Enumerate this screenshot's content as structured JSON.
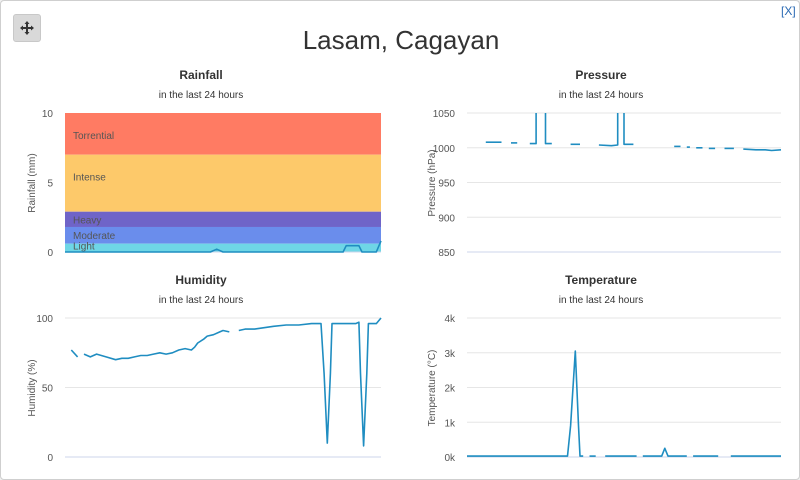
{
  "header": {
    "location": "Lasam, Cagayan",
    "close_label": "[X]",
    "move_icon": "move-icon"
  },
  "colors": {
    "line": "#1f8dc1",
    "grid": "#e6e6e6",
    "torrential": "#ff7b63",
    "intense": "#fdc96a",
    "heavy": "#6f64c8",
    "moderate": "#6a8dec",
    "light": "#6ed6e6"
  },
  "chart_data": [
    {
      "id": "rainfall",
      "type": "line",
      "title": "Rainfall",
      "subtitle": "in the last 24 hours",
      "ylabel": "Rainfall (mm)",
      "ylim": [
        0,
        10
      ],
      "yticks": [
        0,
        5,
        10
      ],
      "yticklabels": [
        "0",
        "5",
        "10"
      ],
      "bands": [
        {
          "label": "Torrential",
          "from": 7,
          "to": 10,
          "color_key": "torrential"
        },
        {
          "label": "Intense",
          "from": 2.9,
          "to": 7,
          "color_key": "intense"
        },
        {
          "label": "Heavy",
          "from": 1.8,
          "to": 2.9,
          "color_key": "heavy"
        },
        {
          "label": "Moderate",
          "from": 0.6,
          "to": 1.8,
          "color_key": "moderate"
        },
        {
          "label": "Light",
          "from": 0,
          "to": 0.6,
          "color_key": "light"
        }
      ],
      "series": [
        {
          "name": "Rainfall",
          "segments": [
            [
              [
                0,
                0
              ],
              [
                0.46,
                0
              ],
              [
                0.48,
                0.2
              ],
              [
                0.5,
                0
              ],
              [
                0.88,
                0
              ],
              [
                0.89,
                0.45
              ],
              [
                0.93,
                0.45
              ],
              [
                0.94,
                0
              ],
              [
                0.985,
                0
              ],
              [
                1,
                0.8
              ]
            ]
          ]
        }
      ]
    },
    {
      "id": "pressure",
      "type": "line",
      "title": "Pressure",
      "subtitle": "in the last 24 hours",
      "ylabel": "Pressure (hPa)",
      "ylim": [
        850,
        1050
      ],
      "yticks": [
        850,
        900,
        950,
        1000,
        1050
      ],
      "yticklabels": [
        "850",
        "900",
        "950",
        "1000",
        "1050"
      ],
      "series": [
        {
          "name": "Pressure",
          "segments": [
            [
              [
                0.06,
                1008
              ],
              [
                0.11,
                1008
              ]
            ],
            [
              [
                0.14,
                1007
              ],
              [
                0.16,
                1007
              ]
            ],
            [
              [
                0.2,
                1006
              ],
              [
                0.22,
                1006
              ],
              [
                0.22,
                1050
              ]
            ],
            [
              [
                0.25,
                1050
              ],
              [
                0.25,
                1006
              ],
              [
                0.27,
                1006
              ]
            ],
            [
              [
                0.33,
                1005
              ],
              [
                0.36,
                1005
              ]
            ],
            [
              [
                0.42,
                1004
              ],
              [
                0.46,
                1003
              ],
              [
                0.48,
                1004
              ],
              [
                0.48,
                1050
              ]
            ],
            [
              [
                0.5,
                1050
              ],
              [
                0.5,
                1005
              ],
              [
                0.53,
                1005
              ]
            ],
            [
              [
                0.66,
                1002
              ],
              [
                0.68,
                1002
              ]
            ],
            [
              [
                0.7,
                1001
              ],
              [
                0.71,
                1001
              ]
            ],
            [
              [
                0.73,
                1000
              ],
              [
                0.75,
                1000
              ]
            ],
            [
              [
                0.77,
                999
              ],
              [
                0.79,
                999
              ]
            ],
            [
              [
                0.82,
                999
              ],
              [
                0.85,
                999
              ]
            ],
            [
              [
                0.88,
                998
              ],
              [
                0.92,
                997
              ],
              [
                0.95,
                997
              ],
              [
                0.97,
                996
              ],
              [
                1,
                997
              ]
            ]
          ]
        }
      ]
    },
    {
      "id": "humidity",
      "type": "line",
      "title": "Humidity",
      "subtitle": "in the last 24 hours",
      "ylabel": "Humidity (%)",
      "ylim": [
        0,
        100
      ],
      "yticks": [
        0,
        50,
        100
      ],
      "yticklabels": [
        "0",
        "50",
        "100"
      ],
      "series": [
        {
          "name": "Humidity",
          "segments": [
            [
              [
                0.02,
                77
              ],
              [
                0.04,
                72
              ]
            ],
            [
              [
                0.06,
                74
              ],
              [
                0.08,
                72
              ],
              [
                0.1,
                74
              ],
              [
                0.13,
                72
              ],
              [
                0.16,
                70
              ],
              [
                0.18,
                71
              ],
              [
                0.2,
                71
              ],
              [
                0.22,
                72
              ],
              [
                0.24,
                73
              ],
              [
                0.26,
                73
              ],
              [
                0.28,
                74
              ],
              [
                0.3,
                75
              ],
              [
                0.32,
                74
              ],
              [
                0.34,
                75
              ],
              [
                0.36,
                77
              ],
              [
                0.38,
                78
              ],
              [
                0.4,
                77
              ],
              [
                0.41,
                79
              ],
              [
                0.42,
                82
              ],
              [
                0.44,
                85
              ],
              [
                0.45,
                87
              ],
              [
                0.47,
                88
              ],
              [
                0.49,
                90
              ],
              [
                0.5,
                91
              ],
              [
                0.52,
                90
              ]
            ],
            [
              [
                0.55,
                91
              ],
              [
                0.57,
                92
              ],
              [
                0.6,
                92
              ],
              [
                0.63,
                93
              ],
              [
                0.66,
                94
              ],
              [
                0.7,
                95
              ],
              [
                0.74,
                95
              ],
              [
                0.78,
                96
              ],
              [
                0.81,
                96
              ],
              [
                0.82,
                60
              ],
              [
                0.83,
                10
              ],
              [
                0.84,
                60
              ],
              [
                0.845,
                96
              ],
              [
                0.87,
                96
              ],
              [
                0.9,
                96
              ],
              [
                0.92,
                96
              ],
              [
                0.93,
                97
              ],
              [
                0.935,
                60
              ],
              [
                0.945,
                8
              ],
              [
                0.955,
                60
              ],
              [
                0.96,
                96
              ],
              [
                0.97,
                96
              ],
              [
                0.985,
                96
              ],
              [
                1,
                100
              ]
            ]
          ]
        }
      ]
    },
    {
      "id": "temperature",
      "type": "line",
      "title": "Temperature",
      "subtitle": "in the last 24 hours",
      "ylabel": "Temperature (&deg;C)",
      "ylim": [
        0,
        4000
      ],
      "yticks": [
        0,
        1000,
        2000,
        3000,
        4000
      ],
      "yticklabels": [
        "0k",
        "1k",
        "2k",
        "3k",
        "4k"
      ],
      "series": [
        {
          "name": "Temperature",
          "segments": [
            [
              [
                0,
                25
              ],
              [
                0.3,
                25
              ],
              [
                0.32,
                25
              ],
              [
                0.33,
                900
              ],
              [
                0.345,
                3050
              ],
              [
                0.355,
                900
              ],
              [
                0.36,
                25
              ],
              [
                0.37,
                25
              ]
            ],
            [
              [
                0.39,
                25
              ],
              [
                0.41,
                25
              ]
            ],
            [
              [
                0.44,
                25
              ],
              [
                0.52,
                25
              ],
              [
                0.54,
                25
              ]
            ],
            [
              [
                0.56,
                25
              ],
              [
                0.6,
                25
              ],
              [
                0.62,
                25
              ],
              [
                0.63,
                250
              ],
              [
                0.64,
                25
              ],
              [
                0.66,
                25
              ],
              [
                0.7,
                25
              ]
            ],
            [
              [
                0.72,
                25
              ],
              [
                0.8,
                25
              ]
            ],
            [
              [
                0.84,
                25
              ],
              [
                0.9,
                25
              ],
              [
                1,
                25
              ]
            ]
          ]
        }
      ]
    }
  ]
}
